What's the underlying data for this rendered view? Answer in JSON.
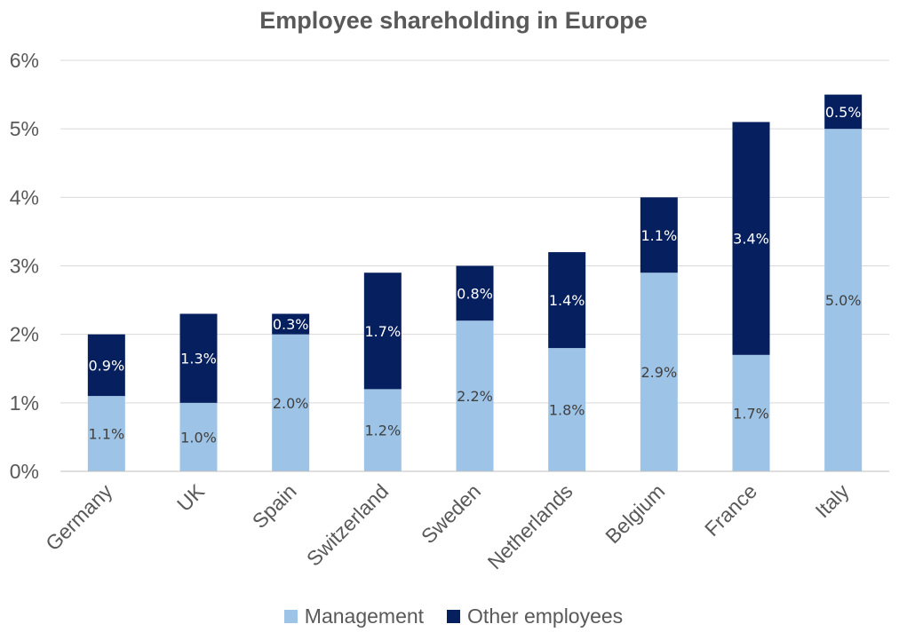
{
  "chart_data": {
    "type": "bar",
    "stacked": true,
    "title": "Employee shareholding in Europe",
    "xlabel": "",
    "ylabel": "",
    "categories": [
      "Germany",
      "UK",
      "Spain",
      "Switzerland",
      "Sweden",
      "Netherlands",
      "Belgium",
      "France",
      "Italy"
    ],
    "series": [
      {
        "name": "Management",
        "color": "#9dc3e6",
        "values": [
          1.1,
          1.0,
          2.0,
          1.2,
          2.2,
          1.8,
          2.9,
          1.7,
          5.0
        ],
        "labels": [
          "1.1%",
          "1.0%",
          "2.0%",
          "1.2%",
          "2.2%",
          "1.8%",
          "2.9%",
          "1.7%",
          "5.0%"
        ]
      },
      {
        "name": "Other employees",
        "color": "#061f5e",
        "values": [
          0.9,
          1.3,
          0.3,
          1.7,
          0.8,
          1.4,
          1.1,
          3.4,
          0.5
        ],
        "labels": [
          "0.9%",
          "1.3%",
          "0.3%",
          "1.7%",
          "0.8%",
          "1.4%",
          "1.1%",
          "3.4%",
          "0.5%"
        ]
      }
    ],
    "ylim": [
      0,
      6
    ],
    "yticks": [
      0,
      1,
      2,
      3,
      4,
      5,
      6
    ],
    "ytick_labels": [
      "0%",
      "1%",
      "2%",
      "3%",
      "4%",
      "5%",
      "6%"
    ],
    "grid": true,
    "legend_position": "bottom"
  }
}
